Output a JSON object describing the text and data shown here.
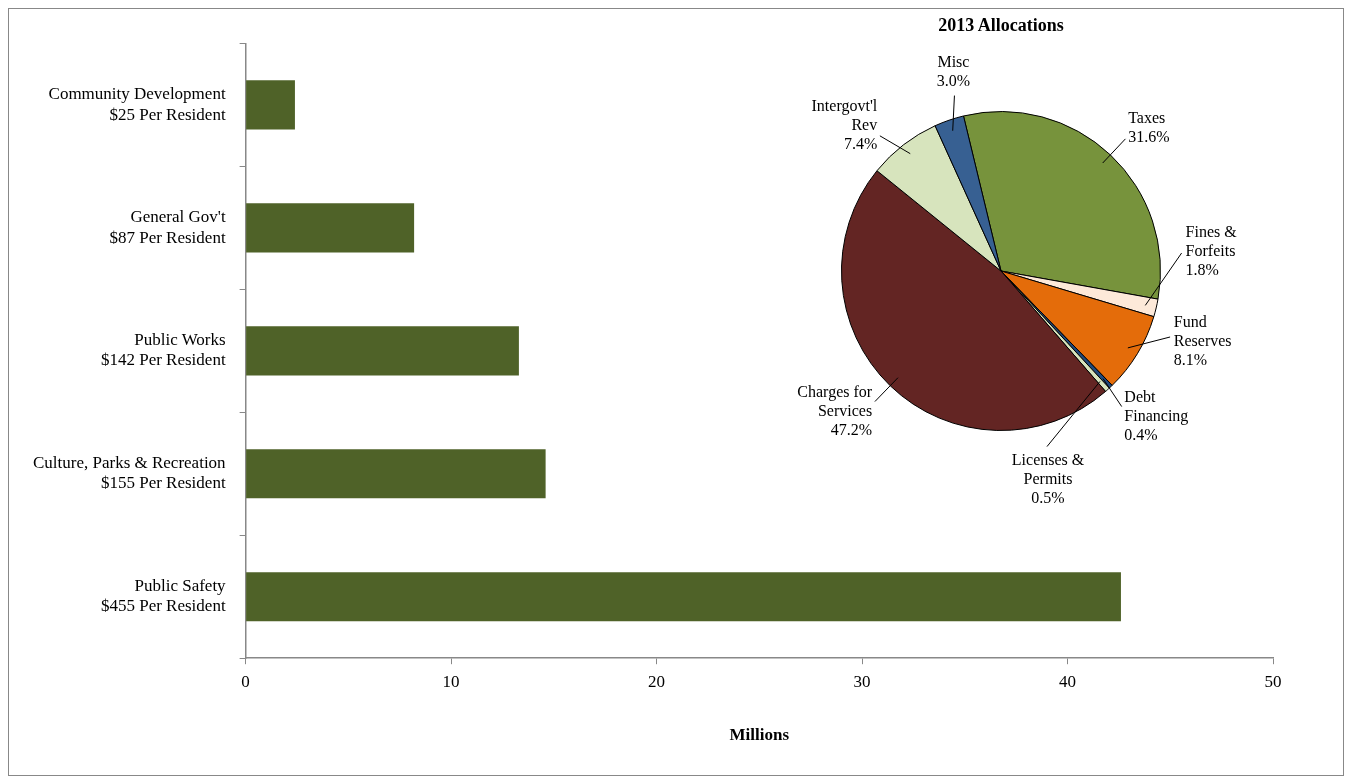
{
  "chart_data": [
    {
      "type": "bar",
      "orientation": "horizontal",
      "categories": [
        "Community Development\n$25 Per Resident",
        "General Gov't\n$87 Per Resident",
        "Public Works\n$142 Per Resident",
        "Culture, Parks & Recreation\n$155 Per Resident",
        "Public Safety\n$455 Per Resident"
      ],
      "values": [
        2.4,
        8.2,
        13.3,
        14.6,
        42.6
      ],
      "color": "#4f6228",
      "xlim": [
        0,
        50
      ],
      "xticks": [
        0,
        10,
        20,
        30,
        40,
        50
      ],
      "xlabel": "Millions",
      "grid": false,
      "legend": false
    },
    {
      "type": "pie",
      "title": "2013 Allocations",
      "categories": [
        "Taxes",
        "Fines &\nForfeits",
        "Fund\nReserves",
        "Debt\nFinancing",
        "Licenses &\nPermits",
        "Charges for\nServices",
        "Intergovt'l\nRev",
        "Misc"
      ],
      "values": [
        31.6,
        1.8,
        8.1,
        0.4,
        0.5,
        47.2,
        7.4,
        3.0
      ],
      "colors": [
        "#77933c",
        "#fde9d9",
        "#e46c0a",
        "#1f497d",
        "#d7e4bd",
        "#632523",
        "#d7e4bd",
        "#376092"
      ],
      "value_labels": [
        "31.6%",
        "1.8%",
        "8.1%",
        "0.4%",
        "0.5%",
        "47.2%",
        "7.4%",
        "3.0%"
      ],
      "legend": false
    }
  ]
}
